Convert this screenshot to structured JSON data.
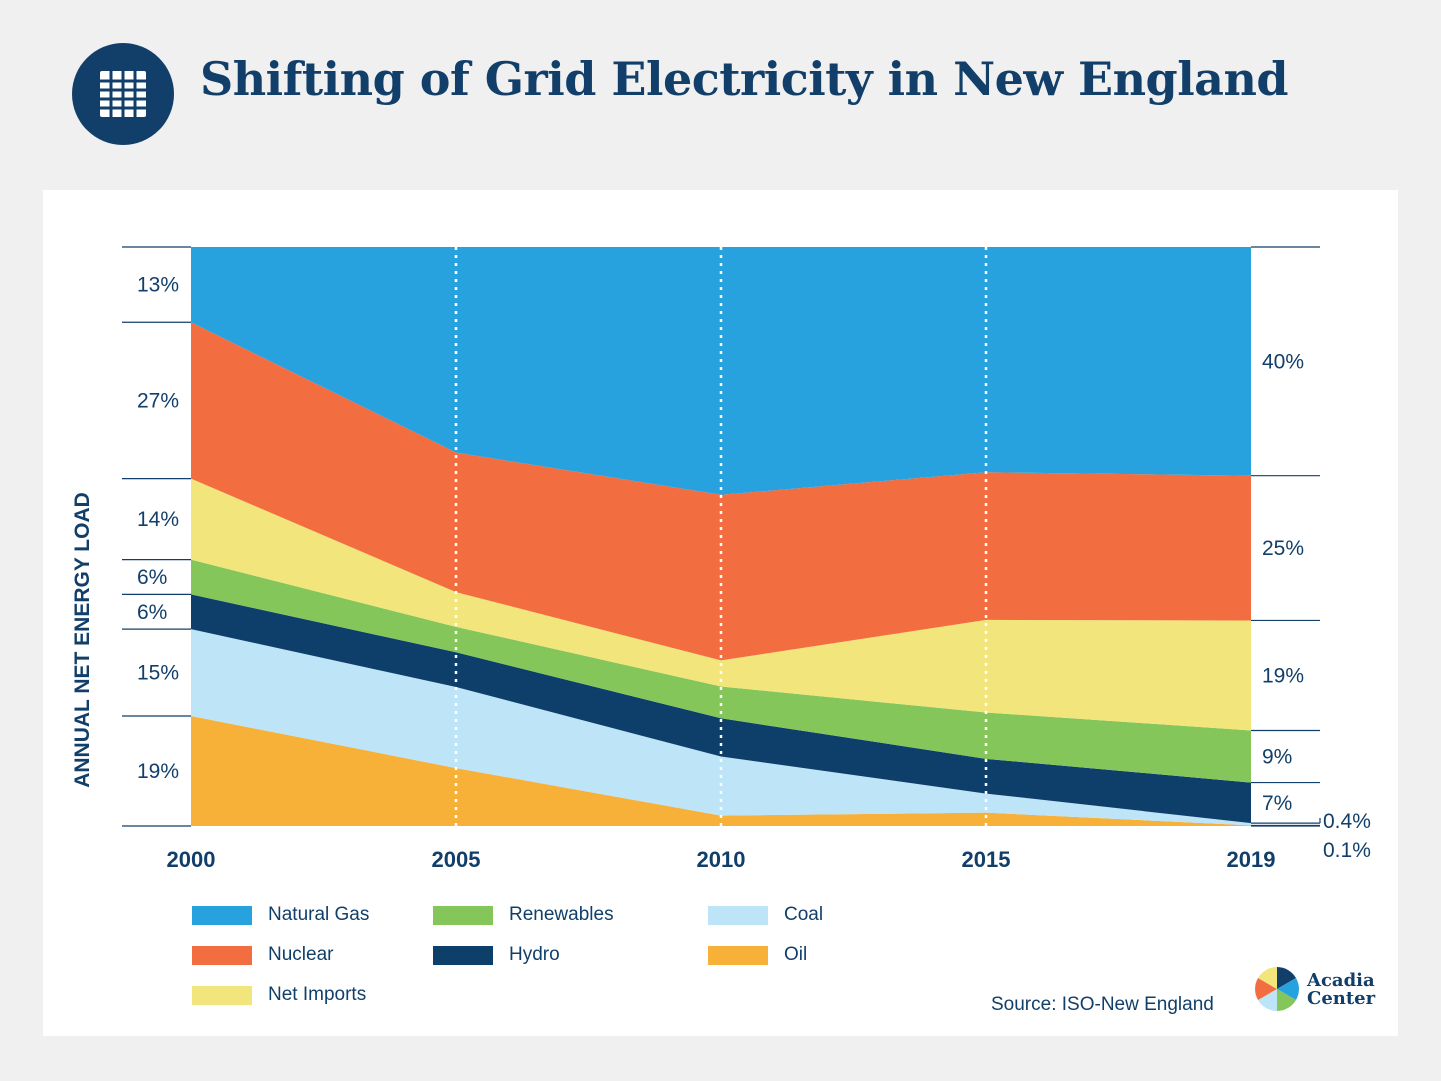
{
  "header": {
    "title": "Shifting of Grid Electricity in New England",
    "icon": "grid-icon"
  },
  "chart_data": {
    "type": "area",
    "stacked": true,
    "title": "Shifting of Grid Electricity in New England",
    "ylabel": "ANNUAL NET ENERGY LOAD",
    "xlabel": "",
    "x": [
      "2000",
      "2005",
      "2010",
      "2015",
      "2019"
    ],
    "ylim": [
      0,
      100
    ],
    "series": [
      {
        "name": "Oil",
        "color": "#f7b038",
        "values": [
          19,
          10,
          1.8,
          2.3,
          0.1
        ]
      },
      {
        "name": "Coal",
        "color": "#bde4f7",
        "values": [
          15,
          14,
          10.2,
          3.3,
          0.4
        ]
      },
      {
        "name": "Hydro",
        "color": "#0e3f6b",
        "values": [
          6,
          6,
          6.6,
          6,
          7
        ]
      },
      {
        "name": "Renewables",
        "color": "#84c65a",
        "values": [
          6,
          4.4,
          5.5,
          8,
          9
        ]
      },
      {
        "name": "Net Imports",
        "color": "#f1e57c",
        "values": [
          14,
          6,
          4.5,
          16,
          19
        ]
      },
      {
        "name": "Nuclear",
        "color": "#f26d3f",
        "values": [
          27,
          24.1,
          28.6,
          25.5,
          25
        ]
      },
      {
        "name": "Natural Gas",
        "color": "#27a2de",
        "values": [
          13,
          35.5,
          42.8,
          38.9,
          39.5
        ]
      }
    ],
    "left_labels": [
      "13%",
      "27%",
      "14%",
      "6%",
      "6%",
      "15%",
      "19%"
    ],
    "right_labels": [
      "40%",
      "25%",
      "19%",
      "9%",
      "7%",
      "0.4%",
      "0.1%"
    ],
    "gridlines": "dotted vertical at 2005, 2010, 2015"
  },
  "legend": [
    {
      "label": "Natural Gas",
      "color": "#27a2de"
    },
    {
      "label": "Nuclear",
      "color": "#f26d3f"
    },
    {
      "label": "Net Imports",
      "color": "#f1e57c"
    },
    {
      "label": "Renewables",
      "color": "#84c65a"
    },
    {
      "label": "Hydro",
      "color": "#0e3f6b"
    },
    {
      "label": "Coal",
      "color": "#bde4f7"
    },
    {
      "label": "Oil",
      "color": "#f7b038"
    }
  ],
  "source": "Source: ISO-New England",
  "logo": {
    "line1": "Acadia",
    "line2": "Center"
  },
  "colors": {
    "navy": "#123f6a",
    "background": "#f0f0f0",
    "panel": "#ffffff"
  }
}
